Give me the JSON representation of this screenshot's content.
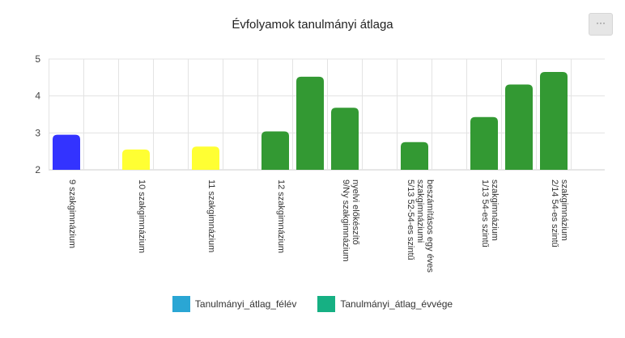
{
  "chart_data": {
    "type": "bar",
    "title": "Évfolyamok tanulmányi átlaga",
    "xlabel": "",
    "ylabel": "",
    "ylim": [
      2,
      5
    ],
    "yticks": [
      2,
      3,
      4,
      5
    ],
    "categories": [
      "9 szakgimnázium",
      "10 szakgimnázium",
      "11 szakgimnázium",
      "12 szakgimnázium",
      "9/Ny szakgimnázium nyelvi előkészítő",
      "5/13 52-54-es szintű szakgimnáziumi beszámításos egy éves",
      "1/13 54-es szintű szakgimnázium",
      "2/14 54-es szintű szakgimnázium"
    ],
    "bars": [
      {
        "category": 0,
        "value": 2.95,
        "color": "#3333ff"
      },
      {
        "category": 1,
        "value": 2.55,
        "color": "#ffff33"
      },
      {
        "category": 2,
        "value": 2.63,
        "color": "#ffff33"
      },
      {
        "category": 3,
        "value": 3.04,
        "color": "#339933"
      },
      {
        "category": 3,
        "value": 4.52,
        "color": "#339933"
      },
      {
        "category": 4,
        "value": 3.68,
        "color": "#339933"
      },
      {
        "category": 5,
        "value": 2.75,
        "color": "#339933"
      },
      {
        "category": 6,
        "value": 3.43,
        "color": "#339933"
      },
      {
        "category": 6,
        "value": 4.31,
        "color": "#339933"
      },
      {
        "category": 7,
        "value": 4.65,
        "color": "#339933"
      }
    ],
    "legend": [
      {
        "name": "Tanulmányi_átlag_félév",
        "color": "#2aa6d4"
      },
      {
        "name": "Tanulmányi_átlag_évvége",
        "color": "#16b083"
      }
    ],
    "legend_position": "bottom",
    "grid": true
  },
  "menu_button_label": "···"
}
